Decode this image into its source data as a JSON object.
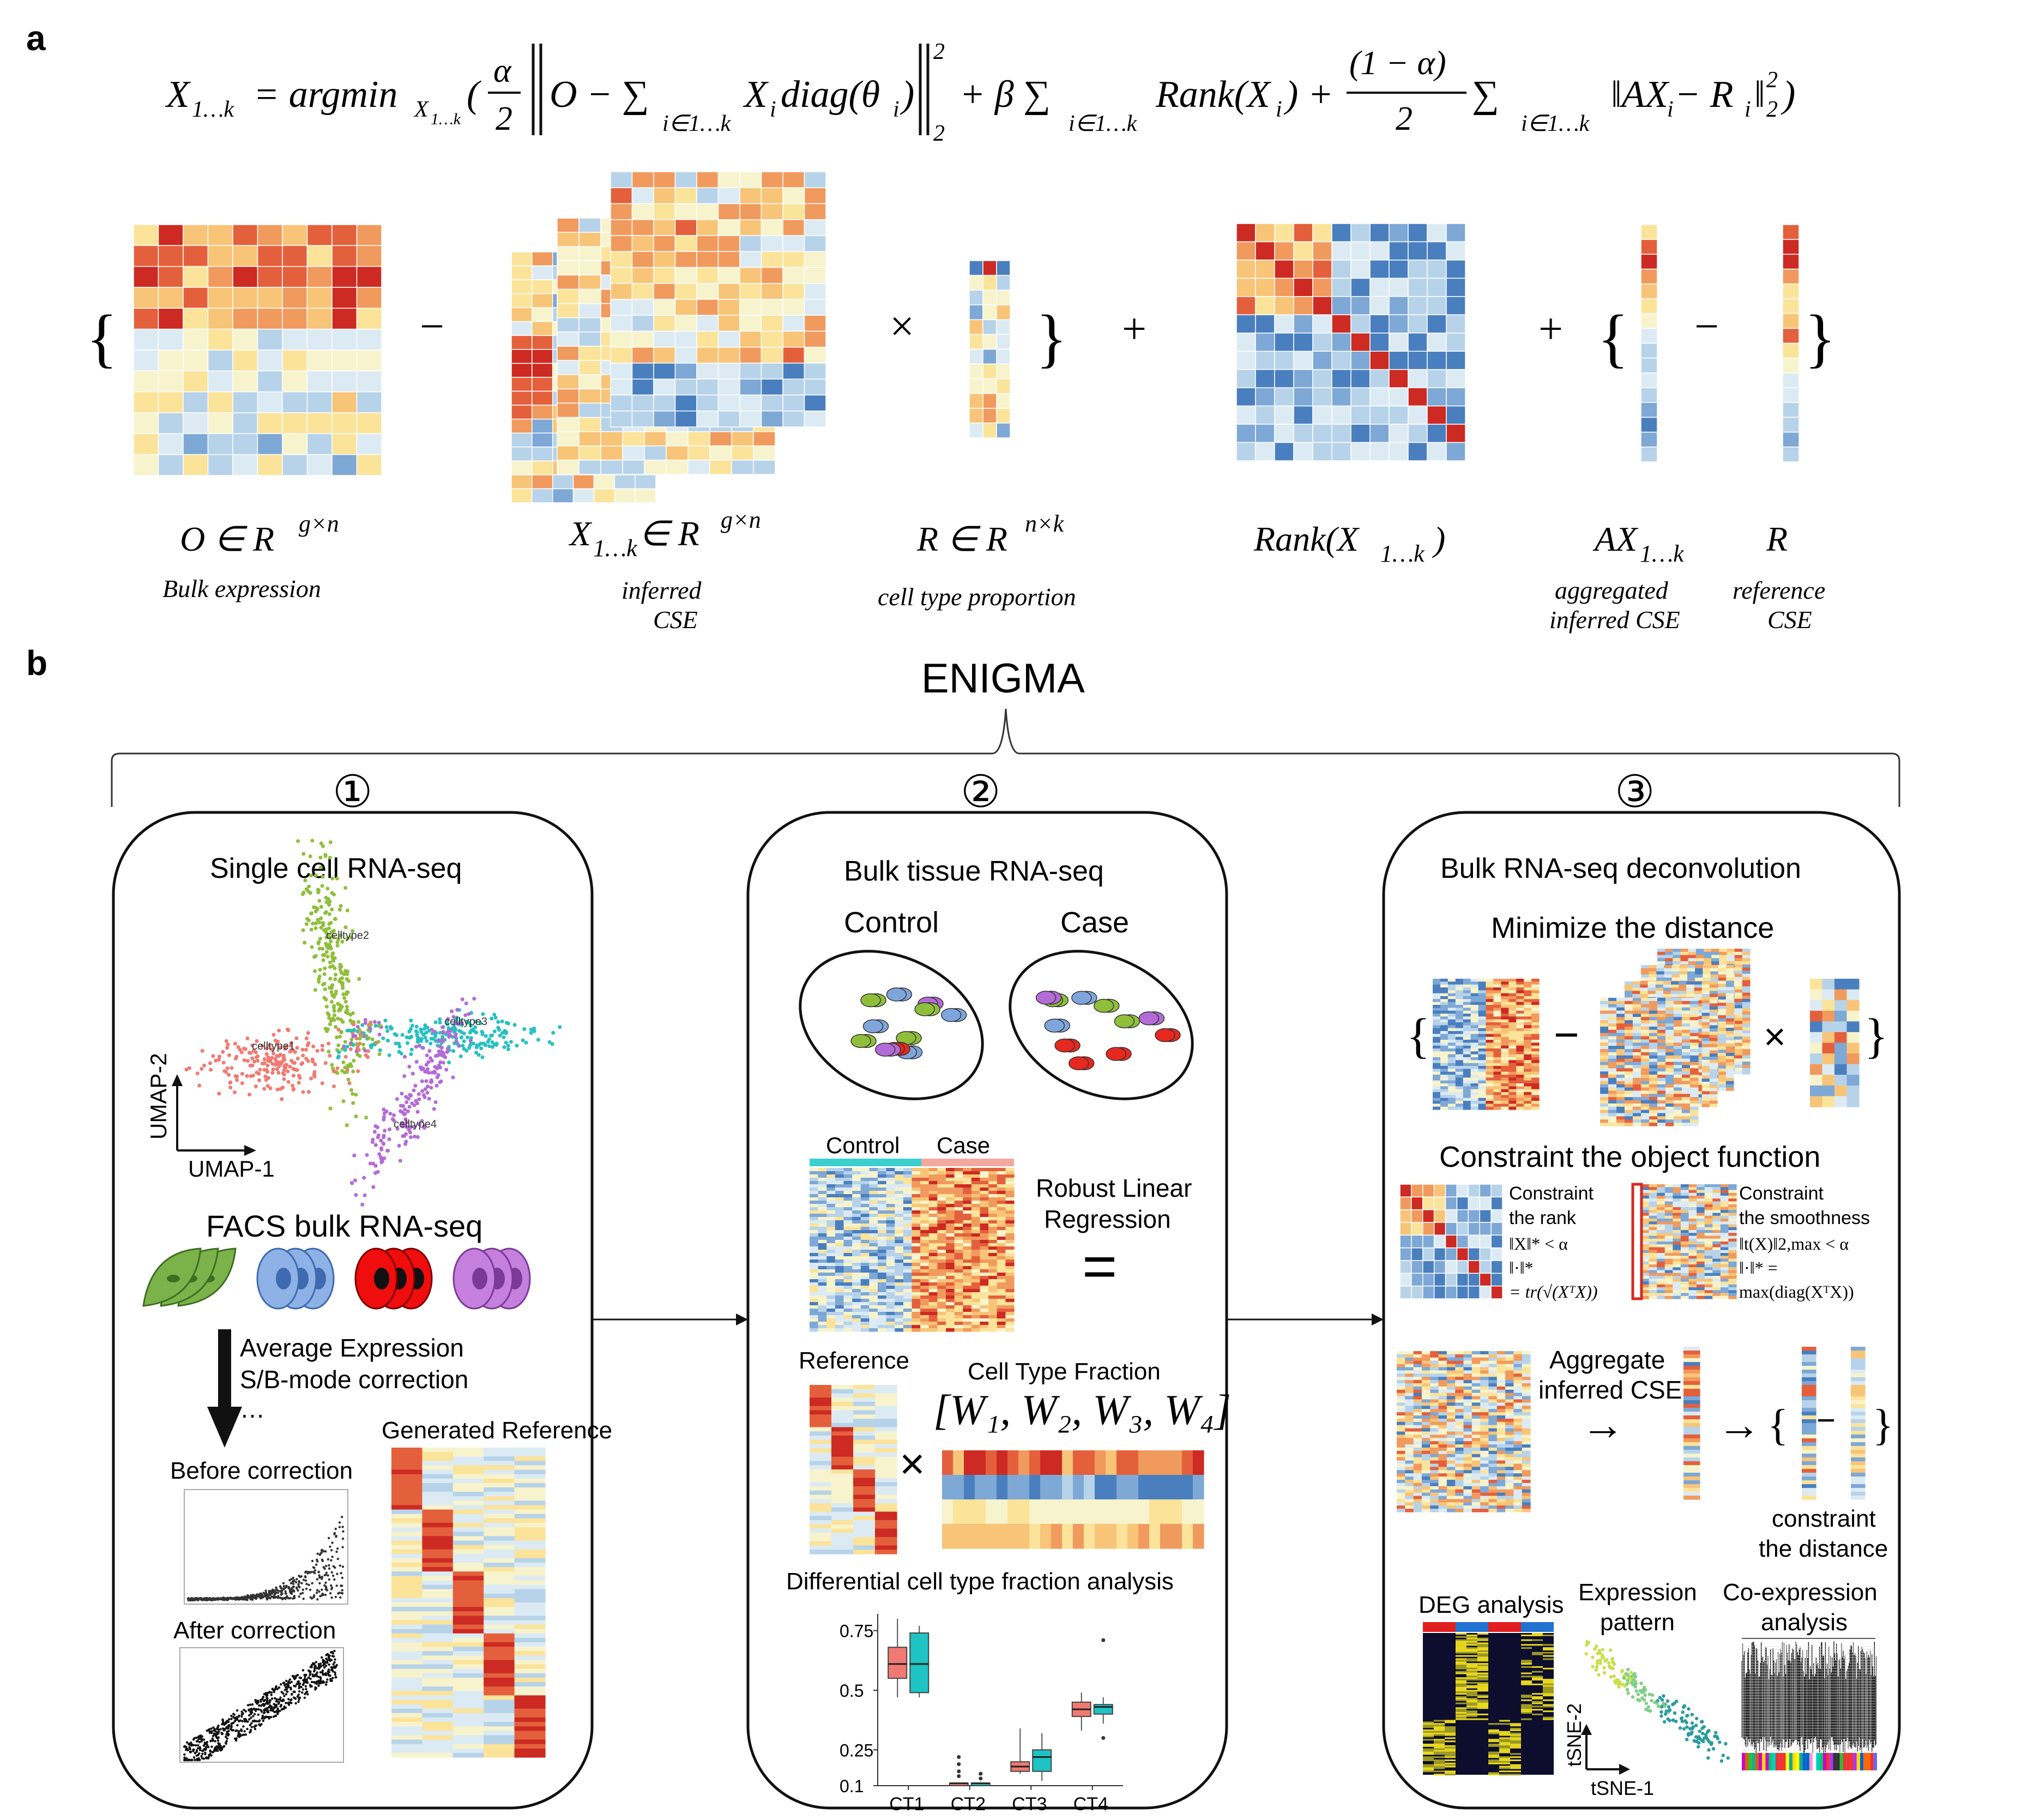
{
  "panel_a": {
    "letter": "a",
    "equation": {
      "lhs": "X",
      "lhs_sub": "1…k",
      "eq": "= argmin",
      "argmin_sub": "X",
      "argmin_subsub": "1…k",
      "open_paren": "(",
      "alpha": "α",
      "two": "2",
      "norm_body": "O − ∑",
      "sum_sub": "i∈1…k",
      "term1": "X",
      "term1_sub": "i",
      "term1_rest": "diag(θ",
      "term1_rest_sub": "i",
      "term1_close": ")",
      "norm_sup": "2",
      "norm_sub": "2",
      "plus_beta": "+ β ∑",
      "sum2_sub": "i∈1…k",
      "rank_term": "Rank(X",
      "rank_sub": "i",
      "rank_close": ") +",
      "frac2_num": "(1 − α)",
      "frac2_den": "2",
      "sum3": "∑",
      "sum3_sub": "i∈1…k",
      "last_term": "‖AX",
      "last_sub_i": "i",
      "last_mid": " − R",
      "last_sub_i2": "i",
      "last_norm": "‖",
      "last_sup": "2",
      "last_sub": "2",
      "close_paren": ")"
    },
    "ops": {
      "brace_open1": "{",
      "minus1": "−",
      "times1": "×",
      "brace_close1": "}",
      "plus1": "+",
      "plus2": "+",
      "brace_open2": "{",
      "minus2": "−",
      "brace_close2": "}"
    },
    "labels": {
      "O_main": "O ∈ R",
      "O_sup": "g×n",
      "O_desc": "Bulk expression",
      "X_main": "X",
      "X_sub": "1…k",
      "X_rest": " ∈ R",
      "X_sup": "g×n",
      "X_desc1": "inferred",
      "X_desc2": "CSE",
      "R_main": "R ∈ R",
      "R_sup": "n×k",
      "R_desc": "cell type proportion",
      "Rank_main": "Rank(X",
      "Rank_sub": "1…k",
      "Rank_close": ")",
      "AX_main": "AX",
      "AX_sub": "1…k",
      "AX_desc1": "aggregated",
      "AX_desc2": "inferred CSE",
      "Ref_main": "R",
      "Ref_desc1": "reference",
      "Ref_desc2": "CSE"
    }
  },
  "panel_b": {
    "letter": "b",
    "title": "ENIGMA",
    "steps": [
      "①",
      "②",
      "③"
    ],
    "box1": {
      "title": "Single cell RNA-seq",
      "umap_x": "UMAP-1",
      "umap_y": "UMAP-2",
      "cluster_labels": [
        "celltype1",
        "celltype2",
        "celltype3",
        "celltype4"
      ],
      "facs_title": "FACS bulk RNA-seq",
      "steps_text": [
        "Average Expression",
        "S/B-mode correction",
        "…"
      ],
      "generated_ref": "Generated Reference",
      "before": "Before correction",
      "after": "After correction"
    },
    "box2": {
      "title": "Bulk tissue RNA-seq",
      "control": "Control",
      "case": "Case",
      "heat_control": "Control",
      "heat_case": "Case",
      "robust1": "Robust Linear",
      "robust2": "Regression",
      "equals": "=",
      "reference": "Reference",
      "times": "×",
      "fraction_title": "Cell Type Fraction",
      "fraction_formula": "[W₁, W₂, W₃, W₄]",
      "diff_title": "Differential cell type fraction analysis"
    },
    "box3": {
      "title": "Bulk RNA-seq deconvolution",
      "minimize": "Minimize the distance",
      "brace_open": "{",
      "minus": "−",
      "times": "×",
      "brace_close": "}",
      "constraint_title": "Constraint the object function",
      "rank_c1": "Constraint",
      "rank_c2": "the rank",
      "rank_c3": "‖X‖* < α",
      "rank_c4": "‖·‖* ",
      "rank_c5": "= tr(√(XᵀX))",
      "smooth_c1": "Constraint",
      "smooth_c2": "the smoothness",
      "smooth_c3": "‖t(X)‖2,max < α",
      "smooth_c4": "‖·‖* =",
      "smooth_c5": "max(diag(XᵀX))",
      "aggregate1": "Aggregate",
      "aggregate2": "inferred CSE",
      "arrow": "→",
      "arrow2": "→",
      "brace2_open": "{",
      "minus2": "−",
      "brace2_close": "}",
      "constraint_dist1": "constraint",
      "constraint_dist2": "the distance",
      "deg": "DEG analysis",
      "expr1": "Expression",
      "expr2": "pattern",
      "coexp1": "Co-expression",
      "coexp2": "analysis",
      "tsne_x": "tSNE-1",
      "tsne_y": "tSNE-2"
    }
  },
  "chart_data": {
    "type": "box",
    "title": "Differential cell type fraction analysis",
    "categories": [
      "CT1",
      "CT2",
      "CT3",
      "CT4"
    ],
    "y_ticks": [
      "0.75",
      "0.5",
      "0.25",
      "0.1"
    ],
    "ylim": [
      0.1,
      0.82
    ],
    "series": [
      {
        "color": "#f07a72",
        "boxes": [
          {
            "min": 0.47,
            "q1": 0.55,
            "median": 0.61,
            "q3": 0.68,
            "max": 0.8
          },
          {
            "min": 0.1,
            "q1": 0.1,
            "median": 0.11,
            "q3": 0.11,
            "max": 0.11,
            "outliers": [
              0.14,
              0.16,
              0.19,
              0.22
            ]
          },
          {
            "min": 0.15,
            "q1": 0.16,
            "median": 0.18,
            "q3": 0.2,
            "max": 0.34
          },
          {
            "min": 0.33,
            "q1": 0.39,
            "median": 0.42,
            "q3": 0.45,
            "max": 0.49
          }
        ]
      },
      {
        "color": "#1ec3c3",
        "boxes": [
          {
            "min": 0.47,
            "q1": 0.49,
            "median": 0.61,
            "q3": 0.74,
            "max": 0.77
          },
          {
            "min": 0.1,
            "q1": 0.1,
            "median": 0.11,
            "q3": 0.11,
            "max": 0.11,
            "outliers": [
              0.13,
              0.15
            ]
          },
          {
            "min": 0.12,
            "q1": 0.16,
            "median": 0.22,
            "q3": 0.25,
            "max": 0.32
          },
          {
            "min": 0.36,
            "q1": 0.4,
            "median": 0.43,
            "q3": 0.44,
            "max": 0.47,
            "outliers": [
              0.3,
              0.71
            ]
          }
        ]
      }
    ]
  },
  "palette": {
    "heat": [
      "#2c5aa0",
      "#4a7fbf",
      "#7ea8d6",
      "#b7d3ea",
      "#dcebf3",
      "#f7f3cc",
      "#fbe39a",
      "#f8c477",
      "#f19a5e",
      "#e4603c",
      "#cc2a22"
    ],
    "case_bar": "#f4a8a0",
    "control_bar": "#3ccfcf",
    "green": "#8fbf3a",
    "blue": "#7fa6dc",
    "red": "#e6281e",
    "purple": "#b36bd6",
    "teal": "#26c0c0",
    "salmon": "#f07a72"
  }
}
